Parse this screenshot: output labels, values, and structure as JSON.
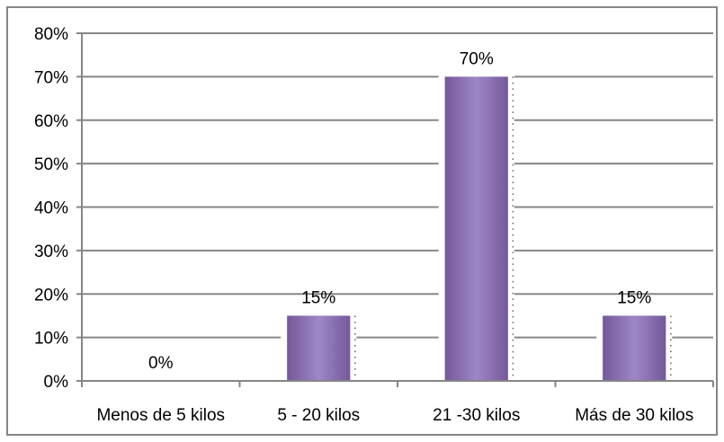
{
  "chart_data": {
    "type": "bar",
    "categories": [
      "Menos de 5 kilos",
      "5 - 20 kilos",
      "21 -30 kilos",
      "Más de 30 kilos"
    ],
    "values": [
      0,
      15,
      70,
      15
    ],
    "data_labels": [
      "0%",
      "15%",
      "70%",
      "15%"
    ],
    "ylim": [
      0,
      80
    ],
    "y_ticks": [
      0,
      10,
      20,
      30,
      40,
      50,
      60,
      70,
      80
    ],
    "y_tick_labels": [
      "0%",
      "10%",
      "20%",
      "30%",
      "40%",
      "50%",
      "60%",
      "70%",
      "80%"
    ],
    "grid": true,
    "legend": false,
    "colors": {
      "bar_edge": "#755899",
      "bar_center": "#9D87C5",
      "grid": "#868686",
      "axis": "#868686",
      "border": "#868686",
      "text": "#000000"
    }
  }
}
